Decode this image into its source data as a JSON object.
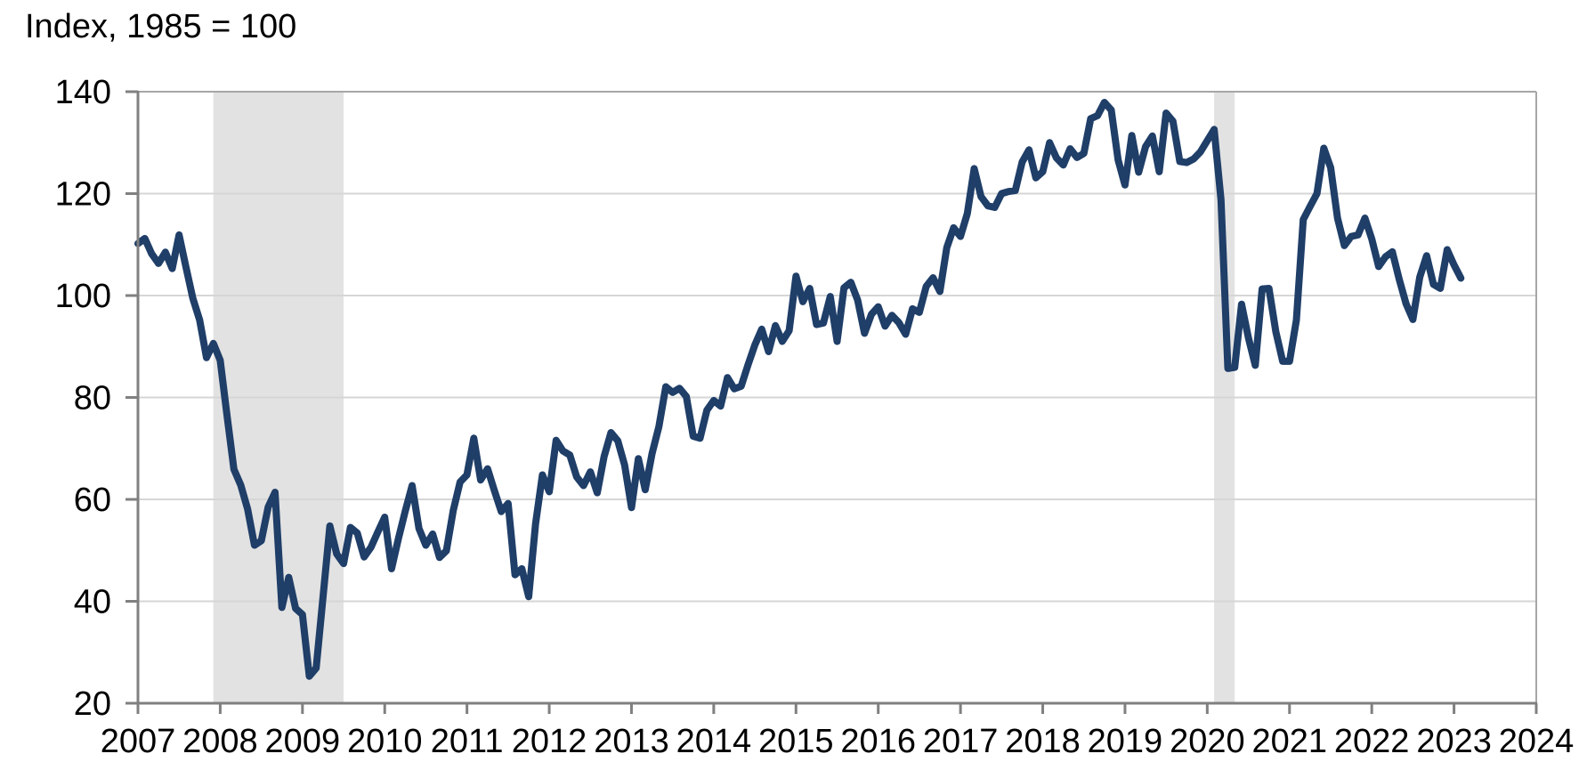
{
  "title": "Index, 1985 = 100",
  "chart_data": {
    "type": "line",
    "title": "Index, 1985 = 100",
    "xlabel": "",
    "ylabel": "Index, 1985 = 100",
    "ylim": [
      20,
      140
    ],
    "y_ticks": [
      20,
      40,
      60,
      80,
      100,
      120,
      140
    ],
    "xlim_years": [
      2007,
      2024
    ],
    "x_tick_labels": [
      "2007",
      "2008",
      "2009",
      "2010",
      "2011",
      "2012",
      "2013",
      "2014",
      "2015",
      "2016",
      "2017",
      "2018",
      "2019",
      "2020",
      "2021",
      "2022",
      "2023",
      "2024"
    ],
    "grid": true,
    "legend": "none",
    "frequency": "monthly",
    "x_monthly_start": "2007-01",
    "x_monthly_end": "2023-02",
    "series": [
      {
        "name": "index",
        "color": "#1f3e68",
        "values": [
          110.2,
          111.2,
          108.2,
          106.3,
          108.5,
          105.3,
          111.9,
          105.6,
          99.5,
          95.2,
          87.8,
          90.6,
          87.3,
          76.4,
          65.9,
          62.8,
          58.1,
          51.0,
          51.9,
          58.5,
          61.4,
          38.8,
          44.7,
          38.6,
          37.4,
          25.3,
          26.9,
          40.8,
          54.8,
          49.3,
          47.4,
          54.5,
          53.4,
          48.7,
          50.6,
          53.6,
          56.5,
          46.4,
          52.3,
          57.7,
          62.7,
          54.3,
          51.0,
          53.2,
          48.6,
          49.9,
          57.8,
          63.4,
          64.8,
          72.0,
          63.8,
          66.0,
          61.7,
          57.6,
          59.2,
          45.2,
          46.4,
          40.9,
          55.2,
          64.8,
          61.5,
          71.6,
          69.5,
          68.7,
          64.4,
          62.7,
          65.4,
          61.3,
          68.4,
          73.1,
          71.5,
          66.7,
          58.4,
          68.0,
          61.9,
          69.0,
          74.3,
          82.1,
          81.0,
          81.8,
          80.2,
          72.4,
          72.0,
          77.5,
          79.4,
          78.3,
          83.9,
          81.7,
          82.2,
          86.4,
          90.3,
          93.4,
          89.0,
          94.1,
          91.0,
          93.1,
          103.8,
          98.8,
          101.4,
          94.3,
          94.6,
          99.8,
          91.0,
          101.5,
          102.6,
          99.1,
          92.6,
          96.3,
          97.8,
          94.0,
          96.1,
          94.7,
          92.4,
          97.4,
          96.7,
          101.8,
          103.5,
          100.8,
          109.4,
          113.3,
          111.6,
          116.1,
          124.9,
          119.4,
          117.6,
          117.3,
          120.0,
          120.4,
          120.6,
          126.2,
          128.6,
          123.1,
          124.3,
          130.0,
          127.0,
          125.6,
          128.8,
          127.1,
          127.9,
          134.7,
          135.3,
          137.9,
          136.4,
          126.6,
          121.7,
          131.4,
          124.2,
          129.2,
          131.3,
          124.3,
          135.8,
          134.2,
          126.3,
          126.1,
          126.8,
          128.2,
          130.4,
          132.6,
          118.8,
          85.7,
          85.9,
          98.3,
          91.7,
          86.3,
          101.3,
          101.4,
          92.9,
          87.1,
          87.1,
          95.2,
          114.9,
          117.5,
          120.0,
          128.9,
          125.1,
          115.2,
          109.8,
          111.6,
          111.9,
          115.2,
          111.1,
          105.7,
          107.6,
          108.6,
          103.2,
          98.4,
          95.3,
          103.6,
          107.8,
          102.2,
          101.4,
          109.0,
          106.0,
          103.4
        ]
      }
    ],
    "shaded_regions": [
      {
        "name": "recession-2008",
        "start": "2007-12",
        "end": "2009-06"
      },
      {
        "name": "recession-2020",
        "start": "2020-02",
        "end": "2020-04"
      }
    ],
    "style": {
      "line_color": "#1f3e68",
      "band_color": "#e2e2e2",
      "gridline_color": "#d6d6d6",
      "axis_color": "#808080",
      "frame_color": "#a6a6a6",
      "text_color": "#000000",
      "background_color": "#ffffff"
    }
  }
}
